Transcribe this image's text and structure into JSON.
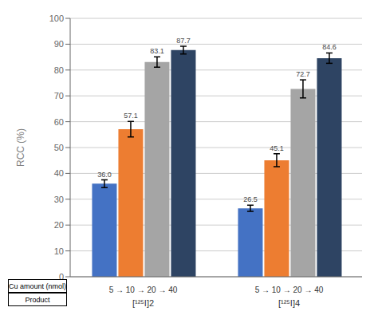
{
  "chart_data": {
    "type": "bar",
    "categories": [
      "[¹²⁵I]2",
      "[¹²⁵I]4"
    ],
    "category_sublabels": [
      "5 → 10 → 20 → 40",
      "5 → 10 → 20 → 40"
    ],
    "row_labels": [
      "Cu amount (nmol)",
      "Product"
    ],
    "ylabel": "RCC (%)",
    "series": [
      {
        "color": "#4472c4",
        "values": [
          36.0,
          26.5
        ],
        "value_labels": [
          "36.0",
          "26.5"
        ],
        "errors": [
          1.5,
          1.2
        ]
      },
      {
        "color": "#ed7d31",
        "values": [
          57.1,
          45.1
        ],
        "value_labels": [
          "57.1",
          "45.1"
        ],
        "errors": [
          3.0,
          2.5
        ]
      },
      {
        "color": "#a5a5a5",
        "values": [
          83.1,
          72.7
        ],
        "value_labels": [
          "83.1",
          "72.7"
        ],
        "errors": [
          2.0,
          3.5
        ]
      },
      {
        "color": "#2e4463",
        "values": [
          87.7,
          84.6
        ],
        "value_labels": [
          "87.7",
          "84.6"
        ],
        "errors": [
          1.5,
          2.0
        ]
      }
    ],
    "ylim": [
      0,
      100
    ],
    "yticks": [
      0,
      10,
      20,
      30,
      40,
      50,
      60,
      70,
      80,
      90,
      100
    ],
    "grid": true,
    "data_labels": true
  }
}
